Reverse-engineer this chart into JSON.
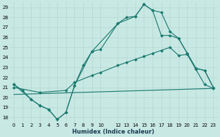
{
  "bg_color": "#c8e8e4",
  "grid_color": "#d4d4d4",
  "line_color": "#1a7a6e",
  "xlabel": "Humidex (Indice chaleur)",
  "xlim": [
    -0.5,
    23.5
  ],
  "ylim": [
    17.5,
    29.5
  ],
  "yticks": [
    18,
    19,
    20,
    21,
    22,
    23,
    24,
    25,
    26,
    27,
    28,
    29
  ],
  "xticks": [
    0,
    1,
    2,
    3,
    4,
    5,
    6,
    7,
    8,
    9,
    10,
    12,
    13,
    14,
    15,
    16,
    17,
    18,
    19,
    20,
    21,
    22,
    23
  ],
  "curve1_x": [
    0,
    1,
    2,
    3,
    4,
    5,
    6,
    7,
    8,
    9,
    10,
    12,
    13,
    14,
    15,
    16,
    17,
    18,
    19,
    20,
    21,
    22,
    23
  ],
  "curve1_y": [
    21.3,
    20.7,
    19.8,
    19.2,
    18.8,
    17.8,
    18.5,
    21.2,
    23.2,
    24.6,
    24.8,
    27.4,
    28.0,
    28.1,
    29.3,
    28.7,
    28.5,
    26.6,
    25.9,
    24.4,
    22.9,
    22.7,
    21.0
  ],
  "curve2_x": [
    0,
    2,
    3,
    4,
    5,
    6,
    7,
    9,
    12,
    14,
    15,
    16,
    17,
    18,
    19,
    20,
    21,
    22,
    23
  ],
  "curve2_y": [
    21.3,
    19.8,
    19.2,
    18.8,
    17.8,
    18.5,
    21.2,
    24.6,
    27.4,
    28.1,
    29.3,
    28.7,
    26.2,
    26.2,
    25.9,
    24.4,
    22.9,
    22.7,
    21.0
  ],
  "curve3_x": [
    0,
    3,
    6,
    7,
    9,
    10,
    12,
    13,
    14,
    15,
    16,
    17,
    18,
    19,
    20,
    21,
    22,
    23
  ],
  "curve3_y": [
    21.0,
    20.5,
    20.7,
    21.5,
    22.2,
    22.5,
    23.2,
    23.5,
    23.8,
    24.1,
    24.4,
    24.7,
    25.0,
    24.2,
    24.3,
    22.8,
    21.3,
    20.9
  ],
  "curve4_x": [
    0,
    23
  ],
  "curve4_y": [
    20.3,
    20.9
  ]
}
